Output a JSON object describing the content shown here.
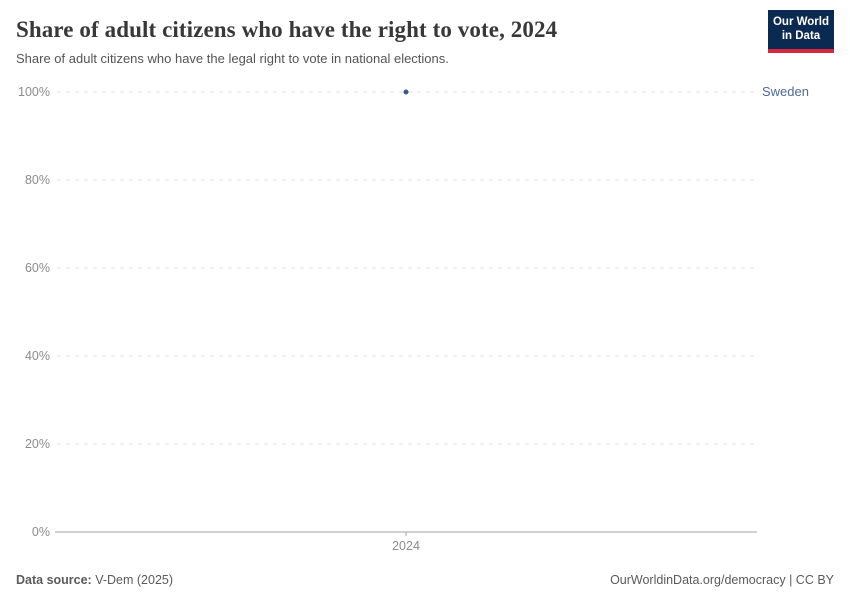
{
  "header": {
    "title": "Share of adult citizens who have the right to vote, 2024",
    "subtitle": "Share of adult citizens who have the legal right to vote in national elections.",
    "logo_line1": "Our World",
    "logo_line2": "in Data"
  },
  "chart_data": {
    "type": "scatter",
    "title": "Share of adult citizens who have the right to vote, 2024",
    "x": [
      2024
    ],
    "x_tick_labels": [
      "2024"
    ],
    "series": [
      {
        "name": "Sweden",
        "values": [
          100
        ]
      }
    ],
    "y_ticks": [
      0,
      20,
      40,
      60,
      80,
      100
    ],
    "y_tick_labels": [
      "0%",
      "20%",
      "40%",
      "60%",
      "80%",
      "100%"
    ],
    "ylim": [
      0,
      100
    ],
    "grid": true,
    "legend_position": "right-of-point",
    "colors": {
      "point": "#3a5a8c",
      "series_label": "#4c6a9c",
      "grid": "#e0e0e0",
      "axis": "#a5a5a5",
      "tick_label": "#8c8c8c"
    }
  },
  "footer": {
    "source_bold": "Data source:",
    "source_rest": " V-Dem (2025)",
    "right_text": "OurWorldinData.org/democracy | CC BY"
  },
  "colors": {
    "logo_bg": "#0b2a51",
    "logo_red": "#d7263d",
    "title": "#383838",
    "subtitle": "#555555",
    "footer": "#5b5b5b"
  }
}
